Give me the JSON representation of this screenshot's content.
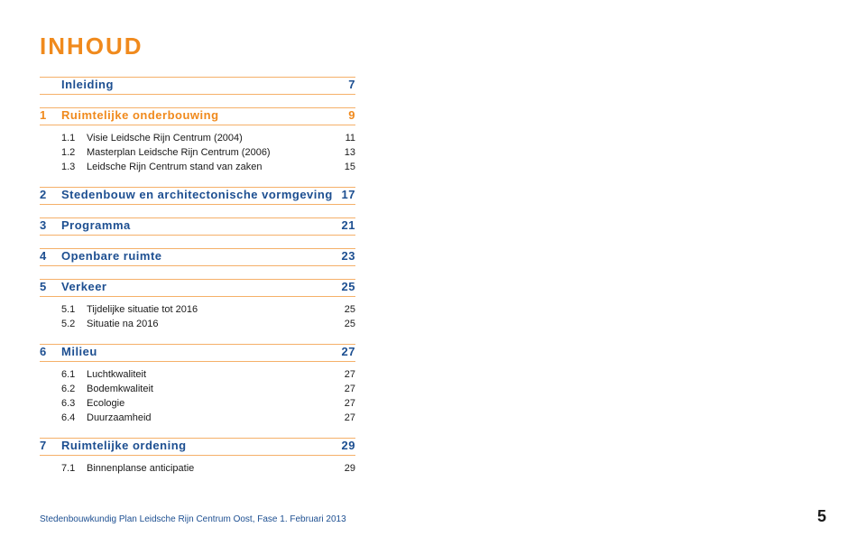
{
  "colors": {
    "orange": "#f08a1d",
    "blue": "#1d4f91",
    "rule": "#f5b069",
    "black": "#1a1a1a",
    "footer_blue": "#1d4f91"
  },
  "title": "INHOUD",
  "sections": [
    {
      "num": "",
      "label": "Inleiding",
      "page": "7",
      "color": "blue",
      "subs": []
    },
    {
      "num": "1",
      "label": "Ruimtelijke onderbouwing",
      "page": "9",
      "color": "orange",
      "subs": [
        {
          "num": "1.1",
          "label": "Visie Leidsche Rijn Centrum (2004)",
          "page": "11"
        },
        {
          "num": "1.2",
          "label": "Masterplan Leidsche Rijn Centrum (2006)",
          "page": "13"
        },
        {
          "num": "1.3",
          "label": "Leidsche Rijn Centrum stand van zaken",
          "page": "15"
        }
      ]
    },
    {
      "num": "2",
      "label": "Stedenbouw en architectonische vormgeving",
      "page": "17",
      "color": "blue",
      "subs": []
    },
    {
      "num": "3",
      "label": "Programma",
      "page": "21",
      "color": "blue",
      "subs": []
    },
    {
      "num": "4",
      "label": "Openbare ruimte",
      "page": "23",
      "color": "blue",
      "subs": []
    },
    {
      "num": "5",
      "label": "Verkeer",
      "page": "25",
      "color": "blue",
      "subs": [
        {
          "num": "5.1",
          "label": "Tijdelijke situatie tot 2016",
          "page": "25"
        },
        {
          "num": "5.2",
          "label": "Situatie na 2016",
          "page": "25"
        }
      ]
    },
    {
      "num": "6",
      "label": "Milieu",
      "page": "27",
      "color": "blue",
      "subs": [
        {
          "num": "6.1",
          "label": "Luchtkwaliteit",
          "page": "27"
        },
        {
          "num": "6.2",
          "label": "Bodemkwaliteit",
          "page": "27"
        },
        {
          "num": "6.3",
          "label": "Ecologie",
          "page": "27"
        },
        {
          "num": "6.4",
          "label": "Duurzaamheid",
          "page": "27"
        }
      ]
    },
    {
      "num": "7",
      "label": "Ruimtelijke ordening",
      "page": "29",
      "color": "blue",
      "subs": [
        {
          "num": "7.1",
          "label": "Binnenplanse anticipatie",
          "page": "29"
        }
      ]
    }
  ],
  "footer": {
    "text": "Stedenbouwkundig Plan Leidsche Rijn Centrum Oost, Fase 1. Februari 2013",
    "page_number": "5"
  }
}
